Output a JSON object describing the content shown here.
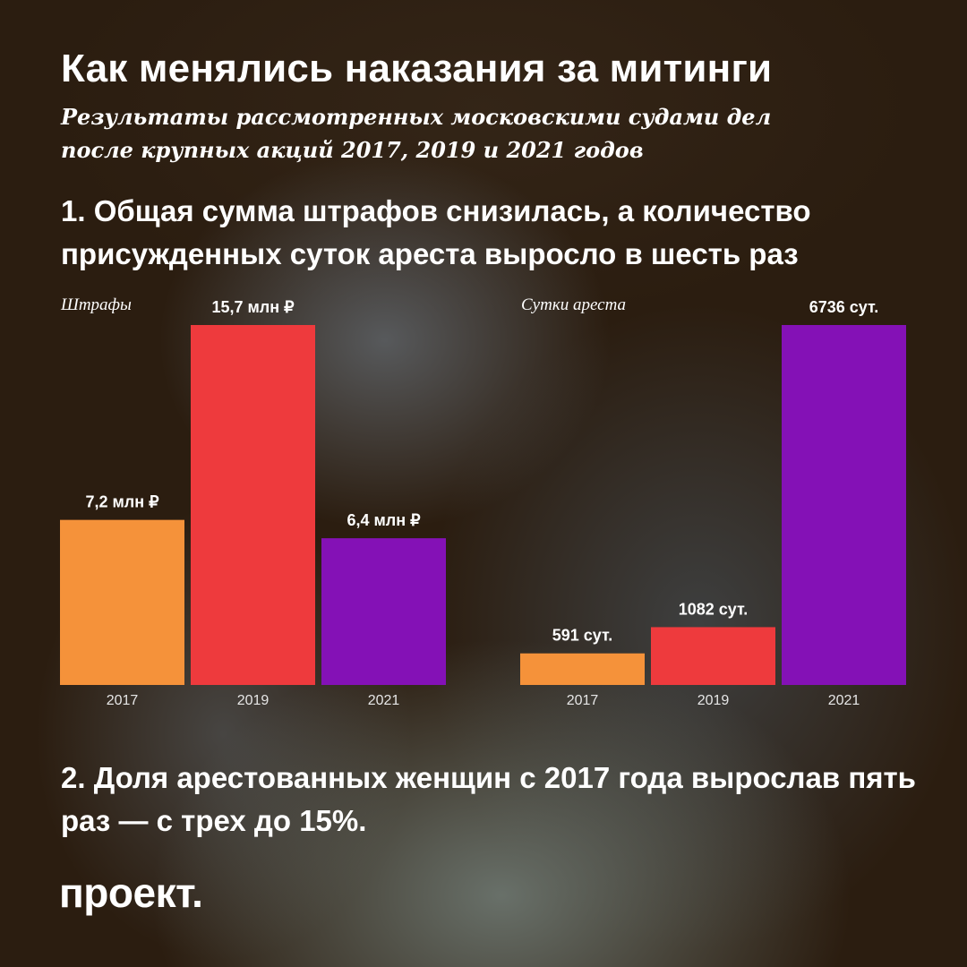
{
  "title": "Как менялись наказания за митинги",
  "subtitle": "Результаты рассмотренных московскими судами дел после крупных акций 2017, 2019 и 2021 годов",
  "point1": "1. Общая сумма штрафов снизилась, а количество присужденных суток ареста выросло в шесть раз",
  "point2": "2. Доля арестованных женщин с 2017 года вырослав пять раз — с трех до 15%.",
  "logo": "проект.",
  "colors": {
    "y2017": "#f5923a",
    "y2019": "#ee3a3d",
    "y2021": "#8411b6"
  },
  "chart_data": [
    {
      "type": "bar",
      "title": "Штрафы",
      "categories": [
        "2017",
        "2019",
        "2021"
      ],
      "values": [
        7.2,
        15.7,
        6.4
      ],
      "data_labels": [
        "7,2 млн ₽",
        "15,7 млн ₽",
        "6,4 млн ₽"
      ],
      "ylim": [
        0,
        15.7
      ],
      "grid": false
    },
    {
      "type": "bar",
      "title": "Сутки ареста",
      "categories": [
        "2017",
        "2019",
        "2021"
      ],
      "values": [
        591,
        1082,
        6736
      ],
      "data_labels": [
        "591 сут.",
        "1082 сут.",
        "6736 сут."
      ],
      "ylim": [
        0,
        6736
      ],
      "grid": false
    }
  ]
}
